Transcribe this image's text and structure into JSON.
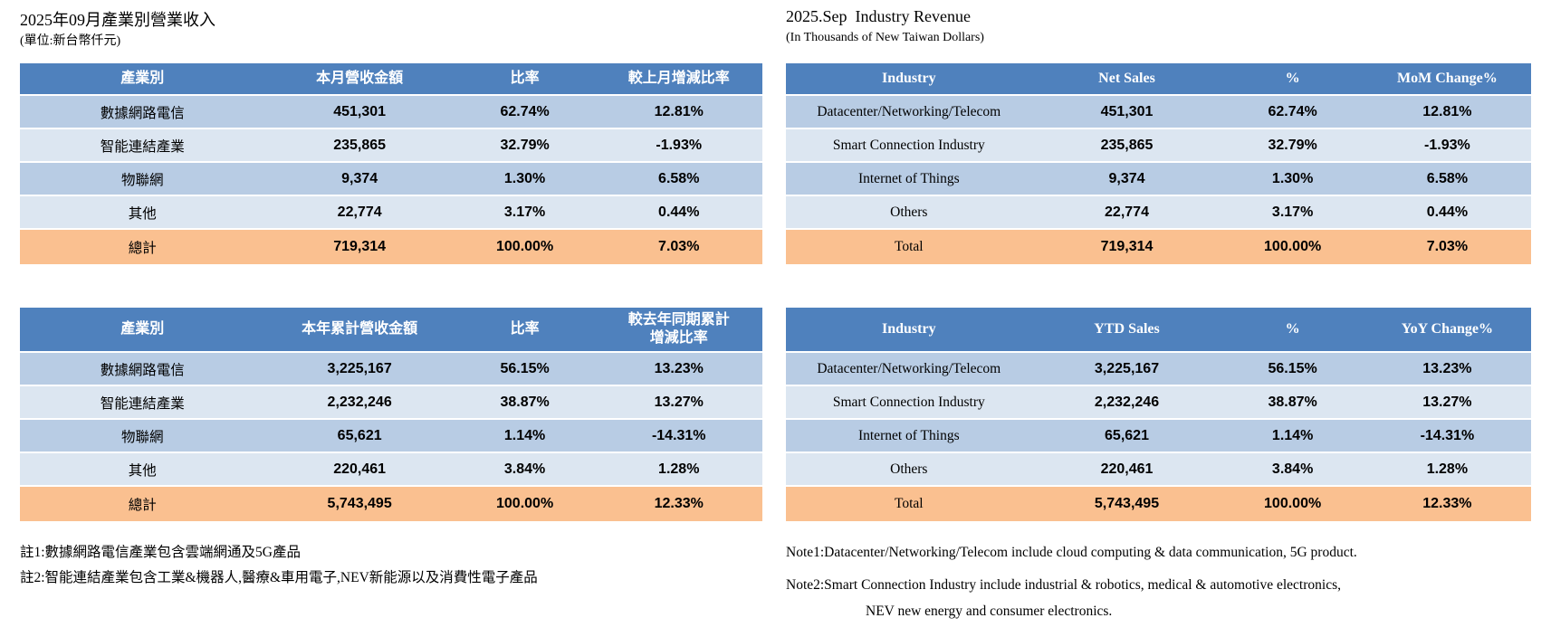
{
  "colors": {
    "header_bg": "#4F81BD",
    "row_alt1": "#B8CCE4",
    "row_alt2": "#DCE6F1",
    "total_bg": "#FAC090"
  },
  "zh": {
    "title": "2025年09月產業別營業收入",
    "unit_note": "(單位:新台幣仟元)",
    "monthly": {
      "headers": [
        "產業別",
        "本月營收金額",
        "比率",
        "較上月增減比率"
      ],
      "rows": [
        [
          "數據網路電信",
          "451,301",
          "62.74%",
          "12.81%"
        ],
        [
          "智能連結產業",
          "235,865",
          "32.79%",
          "-1.93%"
        ],
        [
          "物聯網",
          "9,374",
          "1.30%",
          "6.58%"
        ],
        [
          "其他",
          "22,774",
          "3.17%",
          "0.44%"
        ]
      ],
      "total": [
        "總計",
        "719,314",
        "100.00%",
        "7.03%"
      ]
    },
    "ytd": {
      "headers": [
        "產業別",
        "本年累計營收金額",
        "比率",
        "較去年同期累計\n增減比率"
      ],
      "rows": [
        [
          "數據網路電信",
          "3,225,167",
          "56.15%",
          "13.23%"
        ],
        [
          "智能連結產業",
          "2,232,246",
          "38.87%",
          "13.27%"
        ],
        [
          "物聯網",
          "65,621",
          "1.14%",
          "-14.31%"
        ],
        [
          "其他",
          "220,461",
          "3.84%",
          "1.28%"
        ]
      ],
      "total": [
        "總計",
        "5,743,495",
        "100.00%",
        "12.33%"
      ]
    },
    "notes": {
      "note1": "註1:數據網路電信產業包含雲端網通及5G產品",
      "note2": "註2:智能連結產業包含工業&機器人,醫療&車用電子,NEV新能源以及消費性電子產品"
    }
  },
  "en": {
    "title": "2025.Sep  Industry Revenue",
    "unit_note": "(In Thousands of New Taiwan Dollars)",
    "monthly": {
      "headers": [
        "Industry",
        "Net Sales",
        "%",
        "MoM Change%"
      ],
      "rows": [
        [
          "Datacenter/Networking/Telecom",
          "451,301",
          "62.74%",
          "12.81%"
        ],
        [
          "Smart Connection Industry",
          "235,865",
          "32.79%",
          "-1.93%"
        ],
        [
          "Internet of Things",
          "9,374",
          "1.30%",
          "6.58%"
        ],
        [
          "Others",
          "22,774",
          "3.17%",
          "0.44%"
        ]
      ],
      "total": [
        "Total",
        "719,314",
        "100.00%",
        "7.03%"
      ]
    },
    "ytd": {
      "headers": [
        "Industry",
        "YTD Sales",
        "%",
        "YoY Change%"
      ],
      "rows": [
        [
          "Datacenter/Networking/Telecom",
          "3,225,167",
          "56.15%",
          "13.23%"
        ],
        [
          "Smart Connection Industry",
          "2,232,246",
          "38.87%",
          "13.27%"
        ],
        [
          "Internet of Things",
          "65,621",
          "1.14%",
          "-14.31%"
        ],
        [
          "Others",
          "220,461",
          "3.84%",
          "1.28%"
        ]
      ],
      "total": [
        "Total",
        "5,743,495",
        "100.00%",
        "12.33%"
      ]
    },
    "notes": {
      "note1": "Note1:Datacenter/Networking/Telecom include cloud computing & data communication, 5G product.",
      "note2_line1": "Note2:Smart Connection Industry include industrial & robotics, medical & automotive electronics,",
      "note2_line2": "NEV new energy and consumer electronics."
    }
  }
}
